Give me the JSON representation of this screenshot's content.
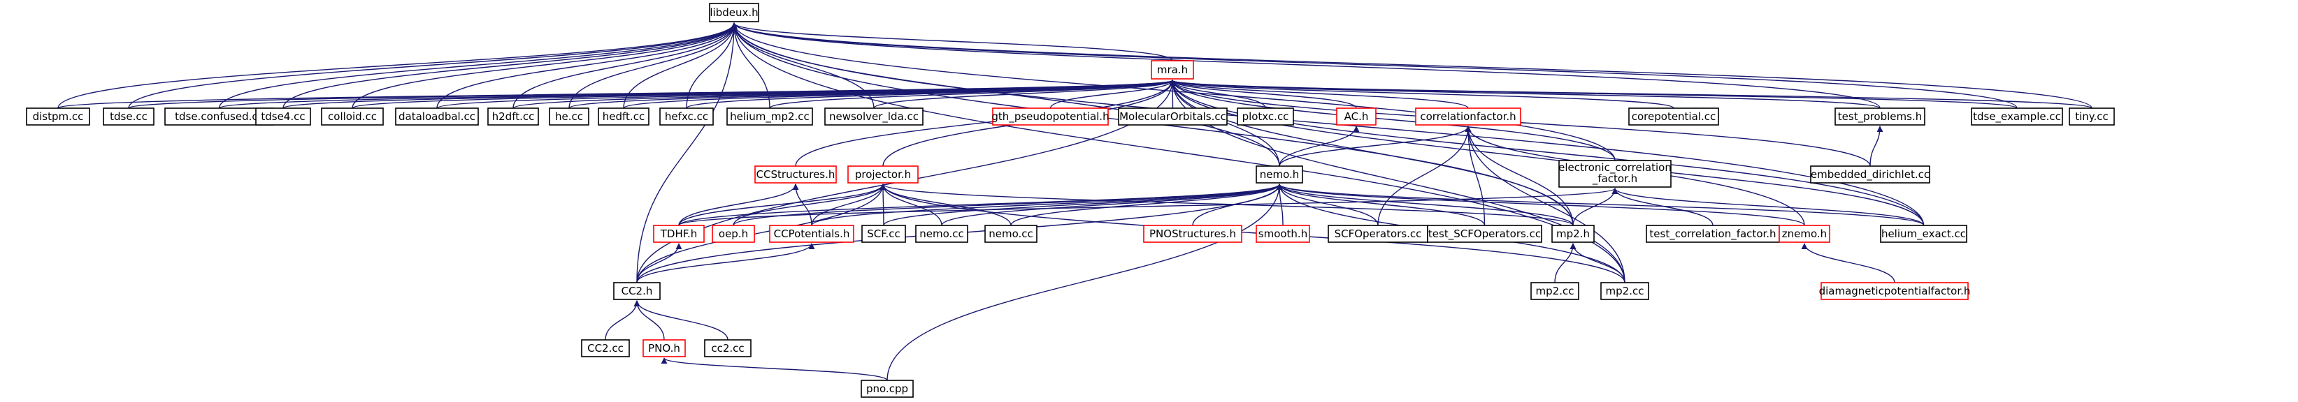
{
  "colors": {
    "edge": "#191970",
    "box_border_black": "#000000",
    "box_border_red": "#ff0000",
    "root_fill": "#bfbfbf",
    "label": "#000000"
  },
  "nodes": [
    {
      "id": "libdeux_h",
      "label": "libdeux.h",
      "style": "root"
    },
    {
      "id": "mra_h",
      "label": "mra.h",
      "style": "red"
    },
    {
      "id": "distpm_cc",
      "label": "distpm.cc",
      "style": "black"
    },
    {
      "id": "tdse_cc",
      "label": "tdse.cc",
      "style": "black"
    },
    {
      "id": "tdse_confused_cc",
      "label": "tdse.confused.cc",
      "style": "black"
    },
    {
      "id": "tdse4_cc",
      "label": "tdse4.cc",
      "style": "black"
    },
    {
      "id": "colloid_cc",
      "label": "colloid.cc",
      "style": "black"
    },
    {
      "id": "dataloadbal_cc",
      "label": "dataloadbal.cc",
      "style": "black"
    },
    {
      "id": "h2dft_cc",
      "label": "h2dft.cc",
      "style": "black"
    },
    {
      "id": "he_cc",
      "label": "he.cc",
      "style": "black"
    },
    {
      "id": "hedft_cc",
      "label": "hedft.cc",
      "style": "black"
    },
    {
      "id": "hefxc_cc",
      "label": "hefxc.cc",
      "style": "black"
    },
    {
      "id": "helium_mp2_cc",
      "label": "helium_mp2.cc",
      "style": "black"
    },
    {
      "id": "newsolver_lda_cc",
      "label": "newsolver_lda.cc",
      "style": "black"
    },
    {
      "id": "gth_pseudopotential_h",
      "label": "gth_pseudopotential.h",
      "style": "red"
    },
    {
      "id": "molecularorbitals_cc",
      "label": "MolecularOrbitals.cc",
      "style": "black"
    },
    {
      "id": "plotxc_cc",
      "label": "plotxc.cc",
      "style": "black"
    },
    {
      "id": "ac_h",
      "label": "AC.h",
      "style": "red"
    },
    {
      "id": "correlationfactor_h",
      "label": "correlationfactor.h",
      "style": "red"
    },
    {
      "id": "corepotential_cc",
      "label": "corepotential.cc",
      "style": "black"
    },
    {
      "id": "test_problems_h",
      "label": "test_problems.h",
      "style": "black"
    },
    {
      "id": "tdse_example_cc",
      "label": "tdse_example.cc",
      "style": "black"
    },
    {
      "id": "tiny_cc",
      "label": "tiny.cc",
      "style": "black"
    },
    {
      "id": "ccstructures_h",
      "label": "CCStructures.h",
      "style": "red"
    },
    {
      "id": "projector_h",
      "label": "projector.h",
      "style": "red"
    },
    {
      "id": "nemo_h",
      "label": "nemo.h",
      "style": "black"
    },
    {
      "id": "electronic_correlation_factor_h",
      "label": "electronic_correlation\n_factor.h",
      "style": "black"
    },
    {
      "id": "embedded_dirichlet_cc",
      "label": "embedded_dirichlet.cc",
      "style": "black"
    },
    {
      "id": "tdhf_h",
      "label": "TDHF.h",
      "style": "red"
    },
    {
      "id": "oep_h",
      "label": "oep.h",
      "style": "red"
    },
    {
      "id": "ccpotentials_h",
      "label": "CCPotentials.h",
      "style": "red"
    },
    {
      "id": "scf_cc",
      "label": "SCF.cc",
      "style": "black"
    },
    {
      "id": "nemo_cc_1",
      "label": "nemo.cc",
      "style": "black"
    },
    {
      "id": "nemo_cc_2",
      "label": "nemo.cc",
      "style": "black"
    },
    {
      "id": "pnostructures_h",
      "label": "PNOStructures.h",
      "style": "red"
    },
    {
      "id": "smooth_h",
      "label": "smooth.h",
      "style": "red"
    },
    {
      "id": "scfoperators_cc",
      "label": "SCFOperators.cc",
      "style": "black"
    },
    {
      "id": "test_scfoperators_cc",
      "label": "test_SCFOperators.cc",
      "style": "black"
    },
    {
      "id": "mp2_h",
      "label": "mp2.h",
      "style": "black"
    },
    {
      "id": "test_correlation_factor_h",
      "label": "test_correlation_factor.h",
      "style": "black"
    },
    {
      "id": "znemo_h",
      "label": "znemo.h",
      "style": "red"
    },
    {
      "id": "helium_exact_cc",
      "label": "helium_exact.cc",
      "style": "black"
    },
    {
      "id": "cc2_h",
      "label": "CC2.h",
      "style": "black"
    },
    {
      "id": "mp2_cc_1",
      "label": "mp2.cc",
      "style": "black"
    },
    {
      "id": "mp2_cc_2",
      "label": "mp2.cc",
      "style": "black"
    },
    {
      "id": "diamagneticpotentialfactor_h",
      "label": "diamagneticpotentialfactor.h",
      "style": "red"
    },
    {
      "id": "cc2_cc_1",
      "label": "CC2.cc",
      "style": "black"
    },
    {
      "id": "pno_h",
      "label": "PNO.h",
      "style": "red"
    },
    {
      "id": "cc2_cc_2",
      "label": "cc2.cc",
      "style": "black"
    },
    {
      "id": "pno_cpp",
      "label": "pno.cpp",
      "style": "black"
    }
  ],
  "edges": [
    [
      "libdeux_h",
      "mra_h"
    ],
    [
      "libdeux_h",
      "distpm_cc"
    ],
    [
      "libdeux_h",
      "tdse_cc"
    ],
    [
      "libdeux_h",
      "tdse_confused_cc"
    ],
    [
      "libdeux_h",
      "tdse4_cc"
    ],
    [
      "libdeux_h",
      "colloid_cc"
    ],
    [
      "libdeux_h",
      "dataloadbal_cc"
    ],
    [
      "libdeux_h",
      "h2dft_cc"
    ],
    [
      "libdeux_h",
      "he_cc"
    ],
    [
      "libdeux_h",
      "hedft_cc"
    ],
    [
      "libdeux_h",
      "hefxc_cc"
    ],
    [
      "libdeux_h",
      "helium_mp2_cc"
    ],
    [
      "libdeux_h",
      "newsolver_lda_cc"
    ],
    [
      "libdeux_h",
      "test_problems_h"
    ],
    [
      "libdeux_h",
      "tdse_example_cc"
    ],
    [
      "libdeux_h",
      "tiny_cc"
    ],
    [
      "libdeux_h",
      "cc2_h"
    ],
    [
      "libdeux_h",
      "electronic_correlation_factor_h"
    ],
    [
      "libdeux_h",
      "nemo_h"
    ],
    [
      "libdeux_h",
      "helium_exact_cc"
    ],
    [
      "libdeux_h",
      "mp2_h"
    ],
    [
      "libdeux_h",
      "mp2_cc_2"
    ],
    [
      "mra_h",
      "distpm_cc"
    ],
    [
      "mra_h",
      "tdse_cc"
    ],
    [
      "mra_h",
      "tdse_confused_cc"
    ],
    [
      "mra_h",
      "tdse4_cc"
    ],
    [
      "mra_h",
      "colloid_cc"
    ],
    [
      "mra_h",
      "dataloadbal_cc"
    ],
    [
      "mra_h",
      "h2dft_cc"
    ],
    [
      "mra_h",
      "he_cc"
    ],
    [
      "mra_h",
      "hedft_cc"
    ],
    [
      "mra_h",
      "hefxc_cc"
    ],
    [
      "mra_h",
      "helium_mp2_cc"
    ],
    [
      "mra_h",
      "newsolver_lda_cc"
    ],
    [
      "mra_h",
      "gth_pseudopotential_h"
    ],
    [
      "mra_h",
      "molecularorbitals_cc"
    ],
    [
      "mra_h",
      "plotxc_cc"
    ],
    [
      "mra_h",
      "ac_h"
    ],
    [
      "mra_h",
      "correlationfactor_h"
    ],
    [
      "mra_h",
      "corepotential_cc"
    ],
    [
      "mra_h",
      "test_problems_h"
    ],
    [
      "mra_h",
      "tdse_example_cc"
    ],
    [
      "mra_h",
      "tiny_cc"
    ],
    [
      "mra_h",
      "ccstructures_h"
    ],
    [
      "mra_h",
      "projector_h"
    ],
    [
      "mra_h",
      "nemo_h"
    ],
    [
      "mra_h",
      "electronic_correlation_factor_h"
    ],
    [
      "mra_h",
      "embedded_dirichlet_cc"
    ],
    [
      "mra_h",
      "cc2_h"
    ],
    [
      "mra_h",
      "helium_exact_cc"
    ],
    [
      "mra_h",
      "mp2_h"
    ],
    [
      "mra_h",
      "znemo_h"
    ],
    [
      "mra_h",
      "mp2_cc_2"
    ],
    [
      "ac_h",
      "nemo_h"
    ],
    [
      "correlationfactor_h",
      "nemo_h"
    ],
    [
      "correlationfactor_h",
      "scfoperators_cc"
    ],
    [
      "correlationfactor_h",
      "test_scfoperators_cc"
    ],
    [
      "correlationfactor_h",
      "mp2_h"
    ],
    [
      "correlationfactor_h",
      "mp2_cc_2"
    ],
    [
      "correlationfactor_h",
      "helium_exact_cc"
    ],
    [
      "test_problems_h",
      "embedded_dirichlet_cc"
    ],
    [
      "ccstructures_h",
      "tdhf_h"
    ],
    [
      "ccstructures_h",
      "ccpotentials_h"
    ],
    [
      "projector_h",
      "tdhf_h"
    ],
    [
      "projector_h",
      "oep_h"
    ],
    [
      "projector_h",
      "ccpotentials_h"
    ],
    [
      "projector_h",
      "scf_cc"
    ],
    [
      "projector_h",
      "nemo_cc_1"
    ],
    [
      "projector_h",
      "nemo_cc_2"
    ],
    [
      "projector_h",
      "cc2_h"
    ],
    [
      "projector_h",
      "mp2_h"
    ],
    [
      "projector_h",
      "mp2_cc_2"
    ],
    [
      "nemo_h",
      "tdhf_h"
    ],
    [
      "nemo_h",
      "oep_h"
    ],
    [
      "nemo_h",
      "ccpotentials_h"
    ],
    [
      "nemo_h",
      "scf_cc"
    ],
    [
      "nemo_h",
      "nemo_cc_1"
    ],
    [
      "nemo_h",
      "nemo_cc_2"
    ],
    [
      "nemo_h",
      "pnostructures_h"
    ],
    [
      "nemo_h",
      "smooth_h"
    ],
    [
      "nemo_h",
      "scfoperators_cc"
    ],
    [
      "nemo_h",
      "test_scfoperators_cc"
    ],
    [
      "nemo_h",
      "mp2_h"
    ],
    [
      "nemo_h",
      "znemo_h"
    ],
    [
      "nemo_h",
      "helium_exact_cc"
    ],
    [
      "nemo_h",
      "cc2_h"
    ],
    [
      "nemo_h",
      "mp2_cc_2"
    ],
    [
      "nemo_h",
      "pno_cpp"
    ],
    [
      "electronic_correlation_factor_h",
      "mp2_h"
    ],
    [
      "electronic_correlation_factor_h",
      "test_correlation_factor_h"
    ],
    [
      "electronic_correlation_factor_h",
      "helium_exact_cc"
    ],
    [
      "electronic_correlation_factor_h",
      "tdhf_h"
    ],
    [
      "tdhf_h",
      "cc2_h"
    ],
    [
      "ccpotentials_h",
      "cc2_h"
    ],
    [
      "mp2_h",
      "mp2_cc_1"
    ],
    [
      "mp2_h",
      "mp2_cc_2"
    ],
    [
      "znemo_h",
      "diamagneticpotentialfactor_h"
    ],
    [
      "cc2_h",
      "cc2_cc_1"
    ],
    [
      "cc2_h",
      "pno_h"
    ],
    [
      "cc2_h",
      "cc2_cc_2"
    ],
    [
      "pno_h",
      "pno_cpp"
    ]
  ]
}
